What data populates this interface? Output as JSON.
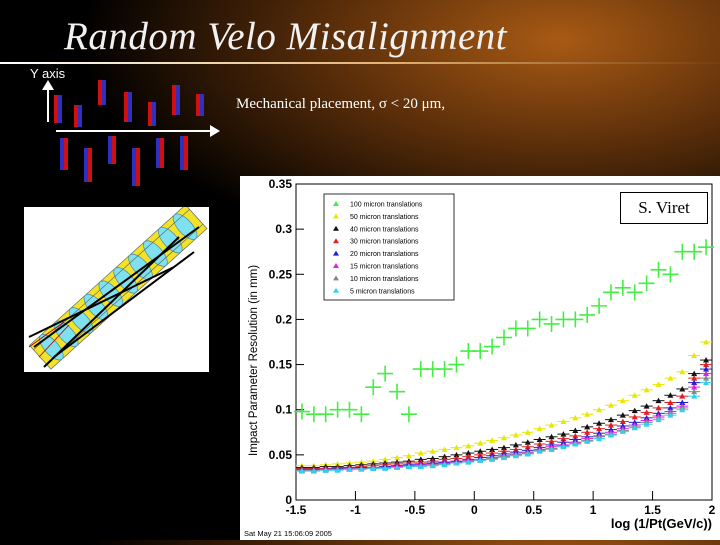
{
  "slide": {
    "title": "Random Velo Misalignment",
    "y_axis_label": "Y axis",
    "mechanical_text": "Mechanical placement, σ < 20 μm,",
    "credit": "S. Viret",
    "timestamp": "Sat May 21 15:06:09 2005"
  },
  "colors": {
    "title": "#f1f1f1",
    "module_red": "#d01010",
    "module_blue": "#3030c0",
    "detector_yellow": "#f2e22a",
    "detector_cyan": "#7fe0f0"
  },
  "chart_data": {
    "type": "scatter",
    "title": "",
    "xlabel": "log (1/Pt(GeV/c))",
    "ylabel": "Impact Parameter  Resolution (in mm)",
    "xlim": [
      -1.5,
      2
    ],
    "ylim": [
      0,
      0.35
    ],
    "x_ticks": [
      "-1.5",
      "-1",
      "-0.5",
      "0",
      "0.5",
      "1",
      "1.5",
      "2"
    ],
    "y_ticks": [
      "0",
      "0.05",
      "0.1",
      "0.15",
      "0.2",
      "0.25",
      "0.3",
      "0.35"
    ],
    "legend_position": "top-left",
    "x": [
      -1.45,
      -1.35,
      -1.25,
      -1.15,
      -1.05,
      -0.95,
      -0.85,
      -0.75,
      -0.65,
      -0.55,
      -0.45,
      -0.35,
      -0.25,
      -0.15,
      -0.05,
      0.05,
      0.15,
      0.25,
      0.35,
      0.45,
      0.55,
      0.65,
      0.75,
      0.85,
      0.95,
      1.05,
      1.15,
      1.25,
      1.35,
      1.45,
      1.55,
      1.65,
      1.75,
      1.85,
      1.95
    ],
    "series": [
      {
        "name": "100 micron translations",
        "color": "#44ee44",
        "marker": "cross",
        "values": [
          0.098,
          0.095,
          0.095,
          0.1,
          0.1,
          0.095,
          0.125,
          0.14,
          0.12,
          0.095,
          0.145,
          0.145,
          0.145,
          0.15,
          0.165,
          0.165,
          0.17,
          0.18,
          0.19,
          0.19,
          0.2,
          0.195,
          0.2,
          0.2,
          0.205,
          0.215,
          0.23,
          0.235,
          0.23,
          0.24,
          0.255,
          0.25,
          0.275,
          0.275,
          0.28
        ]
      },
      {
        "name": "50 micron translations",
        "color": "#e8e800",
        "marker": "triangle",
        "values": [
          0.038,
          0.038,
          0.039,
          0.04,
          0.041,
          0.042,
          0.043,
          0.045,
          0.047,
          0.049,
          0.052,
          0.054,
          0.056,
          0.058,
          0.06,
          0.063,
          0.066,
          0.069,
          0.072,
          0.075,
          0.079,
          0.083,
          0.087,
          0.091,
          0.095,
          0.1,
          0.105,
          0.11,
          0.116,
          0.122,
          0.128,
          0.135,
          0.142,
          0.16,
          0.175
        ]
      },
      {
        "name": "40 micron translations",
        "color": "#111111",
        "marker": "triangle",
        "values": [
          0.036,
          0.036,
          0.037,
          0.037,
          0.038,
          0.039,
          0.04,
          0.041,
          0.042,
          0.043,
          0.045,
          0.046,
          0.048,
          0.05,
          0.052,
          0.054,
          0.056,
          0.058,
          0.061,
          0.064,
          0.067,
          0.07,
          0.073,
          0.077,
          0.081,
          0.085,
          0.089,
          0.094,
          0.099,
          0.104,
          0.11,
          0.116,
          0.123,
          0.14,
          0.155
        ]
      },
      {
        "name": "30 micron translations",
        "color": "#e02020",
        "marker": "triangle",
        "values": [
          0.035,
          0.035,
          0.035,
          0.036,
          0.036,
          0.037,
          0.038,
          0.039,
          0.04,
          0.041,
          0.042,
          0.043,
          0.045,
          0.046,
          0.048,
          0.05,
          0.052,
          0.054,
          0.056,
          0.059,
          0.062,
          0.065,
          0.068,
          0.071,
          0.075,
          0.079,
          0.083,
          0.087,
          0.092,
          0.097,
          0.102,
          0.108,
          0.115,
          0.135,
          0.15
        ]
      },
      {
        "name": "20 micron translations",
        "color": "#2020d0",
        "marker": "triangle",
        "values": [
          0.034,
          0.034,
          0.034,
          0.035,
          0.035,
          0.036,
          0.036,
          0.037,
          0.038,
          0.039,
          0.04,
          0.041,
          0.042,
          0.043,
          0.045,
          0.047,
          0.049,
          0.051,
          0.053,
          0.055,
          0.058,
          0.061,
          0.064,
          0.067,
          0.07,
          0.074,
          0.078,
          0.082,
          0.086,
          0.091,
          0.096,
          0.102,
          0.108,
          0.13,
          0.145
        ]
      },
      {
        "name": "15 micron translations",
        "color": "#e020e0",
        "marker": "triangle",
        "values": [
          0.033,
          0.033,
          0.034,
          0.034,
          0.035,
          0.035,
          0.036,
          0.036,
          0.037,
          0.038,
          0.039,
          0.04,
          0.041,
          0.042,
          0.044,
          0.045,
          0.047,
          0.049,
          0.051,
          0.053,
          0.056,
          0.059,
          0.061,
          0.064,
          0.068,
          0.071,
          0.075,
          0.079,
          0.083,
          0.088,
          0.093,
          0.098,
          0.104,
          0.125,
          0.14
        ]
      },
      {
        "name": "10 micron translations",
        "color": "#888888",
        "marker": "triangle",
        "values": [
          0.033,
          0.033,
          0.033,
          0.034,
          0.034,
          0.035,
          0.035,
          0.036,
          0.036,
          0.037,
          0.038,
          0.039,
          0.04,
          0.041,
          0.043,
          0.044,
          0.046,
          0.048,
          0.05,
          0.052,
          0.055,
          0.057,
          0.06,
          0.063,
          0.066,
          0.07,
          0.073,
          0.077,
          0.081,
          0.086,
          0.091,
          0.096,
          0.102,
          0.12,
          0.135
        ]
      },
      {
        "name": "5 micron translations",
        "color": "#30d0f0",
        "marker": "triangle",
        "values": [
          0.032,
          0.032,
          0.033,
          0.033,
          0.034,
          0.034,
          0.035,
          0.035,
          0.036,
          0.037,
          0.037,
          0.038,
          0.039,
          0.041,
          0.042,
          0.044,
          0.045,
          0.047,
          0.049,
          0.051,
          0.054,
          0.056,
          0.059,
          0.062,
          0.065,
          0.068,
          0.072,
          0.076,
          0.08,
          0.084,
          0.089,
          0.094,
          0.1,
          0.115,
          0.13
        ]
      }
    ]
  }
}
